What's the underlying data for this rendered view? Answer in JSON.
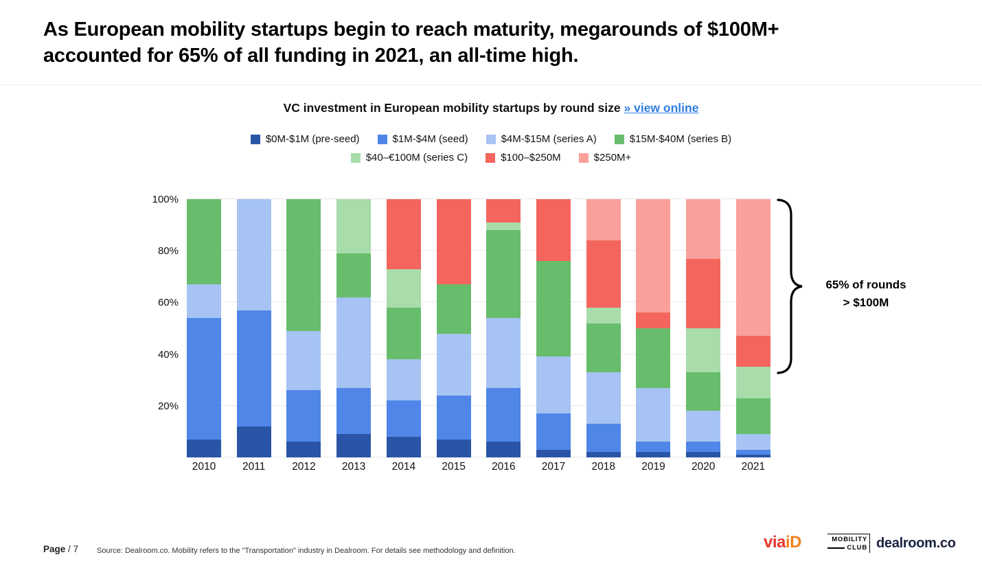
{
  "header": {
    "title": "As European mobility startups begin to reach maturity, megarounds of $100M+ accounted for 65% of all funding in 2021, an all-time high."
  },
  "chart": {
    "title": "VC investment in European mobility startups by round size",
    "link_label": "» view online",
    "annotation_line1": "65% of rounds",
    "annotation_line2": "> $100M"
  },
  "chart_data": {
    "type": "bar",
    "stacked": true,
    "unit": "%",
    "title": "VC investment in European mobility startups by round size",
    "categories": [
      "2010",
      "2011",
      "2012",
      "2013",
      "2014",
      "2015",
      "2016",
      "2017",
      "2018",
      "2019",
      "2020",
      "2021"
    ],
    "ylim": [
      0,
      100
    ],
    "y_ticks": [
      20,
      40,
      60,
      80,
      100
    ],
    "gridlines": [
      0,
      20,
      40,
      60,
      80,
      100
    ],
    "legend_rows": [
      [
        0,
        1,
        2,
        3
      ],
      [
        4,
        5,
        6
      ]
    ],
    "legend_position": "top",
    "series": [
      {
        "name": "$0M-$1M  (pre-seed)",
        "color": "#2a55a6",
        "values": [
          7,
          12,
          6,
          9,
          8,
          7,
          6,
          3,
          2,
          2,
          2,
          1
        ]
      },
      {
        "name": "$1M-$4M (seed)",
        "color": "#4f86e8",
        "values": [
          47,
          45,
          20,
          18,
          14,
          17,
          21,
          14,
          11,
          4,
          4,
          2
        ]
      },
      {
        "name": "$4M-$15M (series A)",
        "color": "#a6c3f3",
        "values": [
          13,
          43,
          23,
          35,
          16,
          24,
          27,
          22,
          20,
          21,
          12,
          6
        ]
      },
      {
        "name": "$15M-$40M (series B)",
        "color": "#67bd6c",
        "values": [
          33,
          0,
          51,
          17,
          20,
          19,
          34,
          37,
          19,
          23,
          15,
          14
        ]
      },
      {
        "name": "$40–€100M (series C)",
        "color": "#a8dcaa",
        "values": [
          0,
          0,
          0,
          21,
          15,
          0,
          3,
          0,
          6,
          0,
          17,
          12
        ]
      },
      {
        "name": "$100–$250M",
        "color": "#f4655d",
        "values": [
          0,
          0,
          0,
          0,
          27,
          33,
          9,
          24,
          26,
          6,
          27,
          12
        ]
      },
      {
        "name": "$250M+",
        "color": "#f9a09b",
        "values": [
          0,
          0,
          0,
          0,
          0,
          0,
          0,
          0,
          16,
          44,
          23,
          53
        ]
      }
    ],
    "annotation": "65% of rounds > $100M"
  },
  "footer": {
    "page_label": "Page",
    "page_number": "/ 7",
    "source": "Source: Dealroom.co.  Mobility refers to the \"Transportation\" industry in Dealroom. For details see methodology and definition.",
    "logos": {
      "via": "via",
      "id": "iD",
      "mobility_line1": "MOBILITY",
      "mobility_line2": "CLUB",
      "dealroom": "dealroom.co"
    }
  }
}
